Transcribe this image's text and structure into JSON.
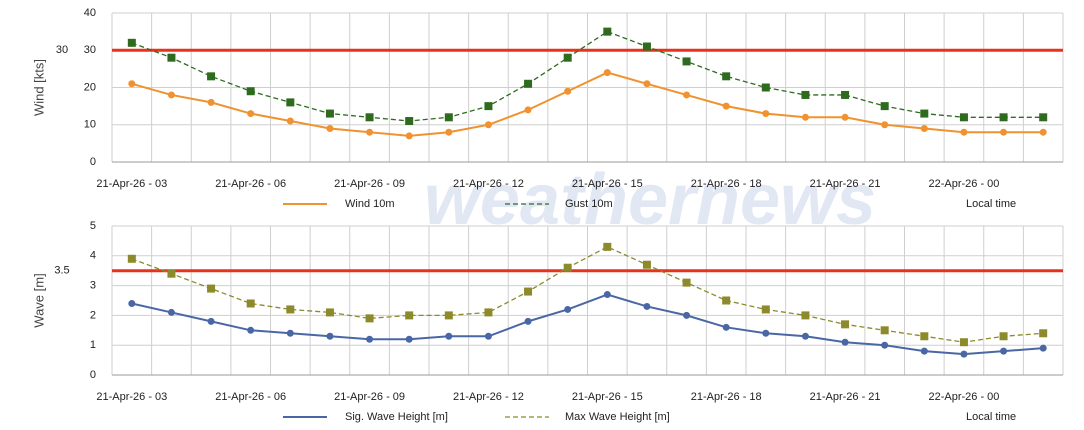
{
  "watermark": "weathernews",
  "chart_data": [
    {
      "type": "line",
      "ylabel": "Wind [kts]",
      "x_note": "Local time",
      "categories": [
        "21-Apr-26 - 03",
        null,
        null,
        "21-Apr-26 - 06",
        null,
        null,
        "21-Apr-26 - 09",
        null,
        null,
        "21-Apr-26 - 12",
        null,
        null,
        "21-Apr-26 - 15",
        null,
        null,
        "21-Apr-26 - 18",
        null,
        null,
        "21-Apr-26 - 21",
        null,
        null,
        "22-Apr-26 - 00",
        null,
        null
      ],
      "series": [
        {
          "name": "Wind 10m",
          "color": "#f0922f",
          "dash": false,
          "marker": "circle",
          "values": [
            21,
            18,
            16,
            13,
            11,
            9,
            8,
            7,
            8,
            10,
            14,
            19,
            24,
            21,
            18,
            15,
            13,
            12,
            12,
            10,
            9,
            8,
            8,
            8
          ]
        },
        {
          "name": "Gust 10m",
          "color": "#2e6b1f",
          "dash": true,
          "marker": "square",
          "values": [
            32,
            28,
            23,
            19,
            16,
            13,
            12,
            11,
            12,
            15,
            21,
            28,
            35,
            31,
            27,
            23,
            20,
            18,
            18,
            15,
            13,
            12,
            12,
            12
          ]
        }
      ],
      "ylim": [
        0,
        40
      ],
      "yticks": [
        0,
        10,
        20,
        30,
        40
      ],
      "grid": true,
      "threshold": 30,
      "threshold_color": "#e8321e"
    },
    {
      "type": "line",
      "ylabel": "Wave [m]",
      "x_note": "Local time",
      "categories": [
        "21-Apr-26 - 03",
        null,
        null,
        "21-Apr-26 - 06",
        null,
        null,
        "21-Apr-26 - 09",
        null,
        null,
        "21-Apr-26 - 12",
        null,
        null,
        "21-Apr-26 - 15",
        null,
        null,
        "21-Apr-26 - 18",
        null,
        null,
        "21-Apr-26 - 21",
        null,
        null,
        "22-Apr-26 - 00",
        null,
        null
      ],
      "series": [
        {
          "name": "Sig. Wave Height [m]",
          "color": "#4a67a5",
          "dash": false,
          "marker": "circle",
          "values": [
            2.4,
            2.1,
            1.8,
            1.5,
            1.4,
            1.3,
            1.2,
            1.2,
            1.3,
            1.3,
            1.8,
            2.2,
            2.7,
            2.3,
            2.0,
            1.6,
            1.4,
            1.3,
            1.1,
            1.0,
            0.8,
            0.7,
            0.8,
            0.9
          ]
        },
        {
          "name": "Max Wave Height [m]",
          "color": "#8c8a2a",
          "dash": true,
          "marker": "square",
          "values": [
            3.9,
            3.4,
            2.9,
            2.4,
            2.2,
            2.1,
            1.9,
            2.0,
            2.0,
            2.1,
            2.8,
            3.6,
            4.3,
            3.7,
            3.1,
            2.5,
            2.2,
            2.0,
            1.7,
            1.5,
            1.3,
            1.1,
            1.3,
            1.4
          ]
        }
      ],
      "ylim": [
        0,
        5
      ],
      "yticks": [
        0,
        1,
        2,
        3,
        4,
        5
      ],
      "grid": true,
      "threshold": 3.5,
      "threshold_color": "#e8321e"
    }
  ]
}
